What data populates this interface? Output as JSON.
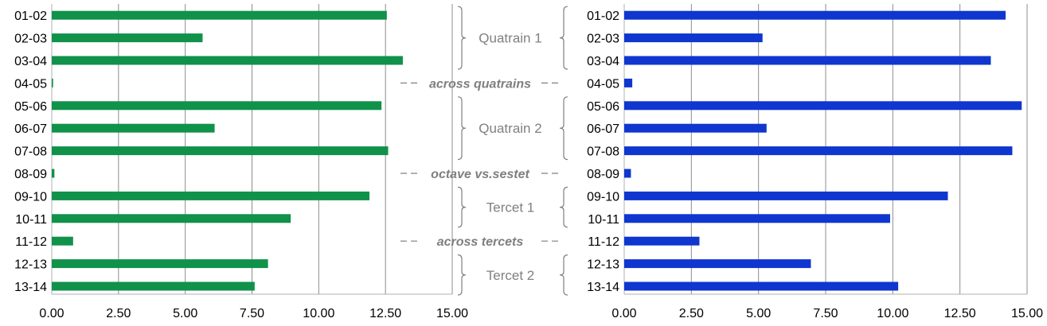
{
  "chart_data": [
    {
      "type": "bar",
      "orientation": "horizontal",
      "categories": [
        "01-02",
        "02-03",
        "03-04",
        "04-05",
        "05-06",
        "06-07",
        "07-08",
        "08-09",
        "09-10",
        "10-11",
        "11-12",
        "12-13",
        "13-14"
      ],
      "values": [
        12.55,
        5.65,
        13.15,
        0.05,
        12.35,
        6.1,
        12.6,
        0.1,
        11.9,
        8.95,
        0.8,
        8.1,
        7.6
      ],
      "xlim": [
        0,
        15
      ],
      "x_ticks": [
        "0.00",
        "2.50",
        "5.00",
        "7.50",
        "10.00",
        "12.50",
        "15.00"
      ],
      "color": "#10924a",
      "grid": "vertical"
    },
    {
      "type": "bar",
      "orientation": "horizontal",
      "categories": [
        "01-02",
        "02-03",
        "03-04",
        "04-05",
        "05-06",
        "06-07",
        "07-08",
        "08-09",
        "09-10",
        "10-11",
        "11-12",
        "12-13",
        "13-14"
      ],
      "values": [
        14.2,
        5.15,
        13.65,
        0.3,
        14.8,
        5.3,
        14.45,
        0.25,
        12.05,
        9.9,
        2.8,
        6.95,
        10.2
      ],
      "xlim": [
        0,
        15
      ],
      "x_ticks": [
        "0.00",
        "2.50",
        "5.00",
        "7.50",
        "10.00",
        "12.50",
        "15.00"
      ],
      "color": "#0f36cf",
      "grid": "vertical"
    }
  ],
  "annotations": {
    "groups": [
      {
        "label": "Quatrain 1",
        "from": 0,
        "to": 2
      },
      {
        "label": "Quatrain 2",
        "from": 4,
        "to": 6
      },
      {
        "label": "Tercet 1",
        "from": 8,
        "to": 9
      },
      {
        "label": "Tercet 2",
        "from": 11,
        "to": 12
      }
    ],
    "transitions": [
      {
        "label": "across quatrains",
        "row": 3
      },
      {
        "label": "octave vs.sestet",
        "row": 7
      },
      {
        "label": "across tercets",
        "row": 10
      }
    ],
    "group_color": "#808080",
    "transition_color": "#7f7f7f"
  }
}
